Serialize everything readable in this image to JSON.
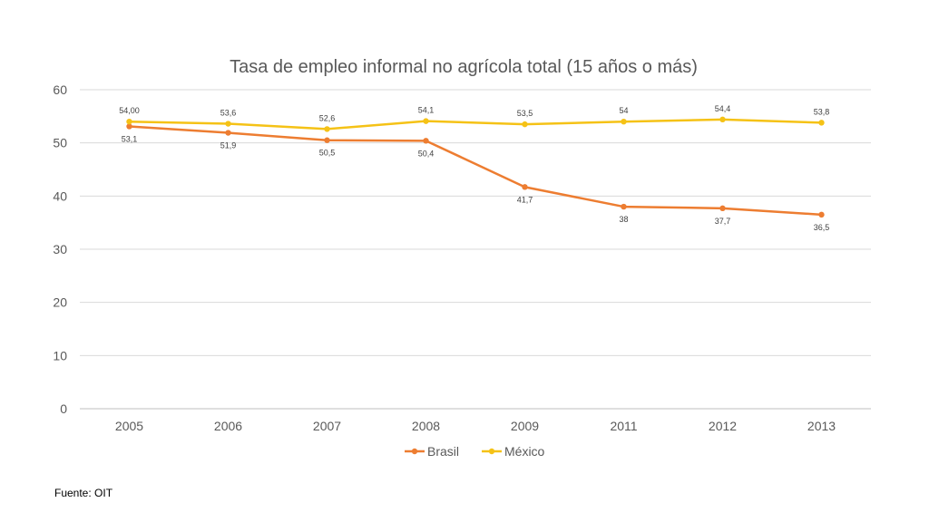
{
  "chart_data": {
    "type": "line",
    "title": "Tasa de empleo informal no agrícola total (15 años o más)",
    "xlabel": "",
    "ylabel": "",
    "categories": [
      "2005",
      "2006",
      "2007",
      "2008",
      "2009",
      "2011",
      "2012",
      "2013"
    ],
    "ylim": [
      0,
      60
    ],
    "yticks": [
      0,
      10,
      20,
      30,
      40,
      50,
      60
    ],
    "grid": true,
    "legend": "bottom",
    "series": [
      {
        "name": "Brasil",
        "color": "#ED7D31",
        "values": [
          53.1,
          51.9,
          50.5,
          50.4,
          41.7,
          38,
          37.7,
          36.5
        ],
        "labels": [
          "53,1",
          "51,9",
          "50,5",
          "50,4",
          "41,7",
          "38",
          "37,7",
          "36,5"
        ],
        "label_position": "below"
      },
      {
        "name": "México",
        "color": "#F5C216",
        "values": [
          54.0,
          53.6,
          52.6,
          54.1,
          53.5,
          54,
          54.4,
          53.8
        ],
        "labels": [
          "54,00",
          "53,6",
          "52,6",
          "54,1",
          "53,5",
          "54",
          "54,4",
          "53,8"
        ],
        "label_position": "above"
      }
    ]
  },
  "source": "Fuente: OIT"
}
